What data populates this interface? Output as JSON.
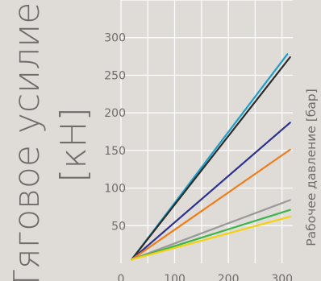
{
  "chart_data": {
    "type": "line",
    "ylabel_lines": [
      "Тяговое усилие",
      "[кН]"
    ],
    "xlabel": "Рабочее давление [бар]",
    "x_ticks": [
      0,
      100,
      200,
      300
    ],
    "y_ticks": [
      50,
      100,
      150,
      200,
      250,
      300
    ],
    "xlim": [
      0,
      320
    ],
    "ylim": [
      0,
      350
    ],
    "grid": true,
    "background": "#dfdcd8",
    "grid_color": "#ffffff",
    "series": [
      {
        "color": "#1f9ec9",
        "x": [
          20,
          310
        ],
        "y": [
          5,
          278
        ]
      },
      {
        "color": "#2b2b2b",
        "x": [
          20,
          315
        ],
        "y": [
          5,
          274
        ]
      },
      {
        "color": "#2a318f",
        "x": [
          20,
          315
        ],
        "y": [
          5,
          187
        ]
      },
      {
        "color": "#ee7d1b",
        "x": [
          20,
          315
        ],
        "y": [
          5,
          151
        ]
      },
      {
        "color": "#999999",
        "x": [
          20,
          315
        ],
        "y": [
          5,
          84
        ]
      },
      {
        "color": "#3bb54a",
        "x": [
          20,
          315
        ],
        "y": [
          5,
          71
        ]
      },
      {
        "color": "#f5d10d",
        "x": [
          20,
          315
        ],
        "y": [
          5,
          62
        ]
      }
    ]
  }
}
